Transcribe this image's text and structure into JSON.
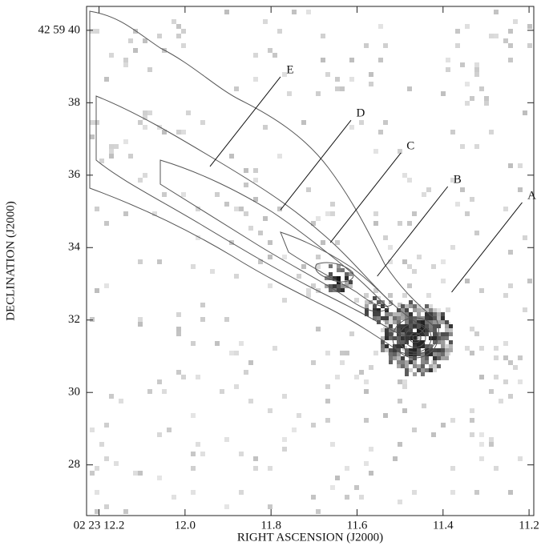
{
  "chart_data": {
    "type": "image",
    "xlabel": "RIGHT ASCENSION (J2000)",
    "ylabel": "DECLINATION (J2000)",
    "xlim": [
      12.229,
      11.189
    ],
    "ylim": [
      26.6,
      40.66
    ],
    "xticks": [
      {
        "value": 12.2,
        "label": "02 23 12.2"
      },
      {
        "value": 12.0,
        "label": "12.0"
      },
      11.8,
      11.6,
      11.4,
      {
        "value": 11.2,
        "label": "11.2"
      }
    ],
    "yticks": [
      {
        "value": 40,
        "label": "42 59 40"
      },
      38,
      36,
      34,
      32,
      30,
      28
    ],
    "annotations": [
      {
        "label": "A",
        "x": 11.38,
        "y": 32.77
      },
      {
        "label": "B",
        "x": 11.553,
        "y": 33.21
      },
      {
        "label": "C",
        "x": 11.662,
        "y": 34.14
      },
      {
        "label": "D",
        "x": 11.778,
        "y": 35.04
      },
      {
        "label": "E",
        "x": 11.942,
        "y": 36.24
      }
    ]
  }
}
